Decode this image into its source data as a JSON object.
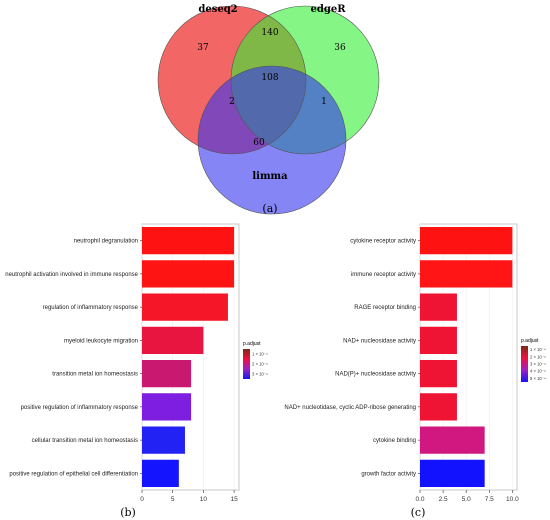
{
  "venn": {
    "panel_label": "(a)",
    "sets": [
      {
        "name": "deseq2",
        "color": "#f04040"
      },
      {
        "name": "edgeR",
        "color": "#33ee33"
      },
      {
        "name": "limma",
        "color": "#3333ee"
      }
    ],
    "regions": {
      "deseq2_only": "37",
      "edgeR_only": "36",
      "limma_only": "60",
      "deseq2_edgeR": "140",
      "deseq2_limma": "2",
      "edgeR_limma": "1",
      "all": "108"
    }
  },
  "legend_b": {
    "title": "p.adjust",
    "colors": [
      "#7a2a18",
      "#ee1040",
      "#a020c0",
      "#1515f0"
    ],
    "labels": [
      "1 × 10⁻⁴",
      "2 × 10⁻⁴",
      "3 × 10⁻⁴"
    ]
  },
  "legend_c": {
    "title": "p.adjust",
    "colors": [
      "#7a2a18",
      "#ee1040",
      "#a020c0",
      "#1515f0"
    ],
    "labels": [
      "1 × 10⁻⁴",
      "2 × 10⁻⁴",
      "3 × 10⁻⁴",
      "4 × 10⁻⁴",
      "5 × 10⁻⁴"
    ]
  },
  "chart_data": [
    {
      "type": "bar",
      "orientation": "horizontal",
      "panel_label": "(b)",
      "categories": [
        "neutrophil degranulation",
        "neutrophil activation involved in immune response",
        "regulation of inflammatory response",
        "myeloid leukocyte migration",
        "transition metal ion homeostasis",
        "positive regulation of inflammatory response",
        "cellular transition metal ion homeostasis",
        "positive regulation of epithelial cell differentiation"
      ],
      "values": [
        15,
        15,
        14,
        10,
        8,
        8,
        7,
        6
      ],
      "colors": [
        "#ff1212",
        "#ff1414",
        "#f51628",
        "#e81540",
        "#c81870",
        "#7e1ee0",
        "#2222f4",
        "#1414ff"
      ],
      "xlim": [
        0,
        15.8
      ],
      "xticks": [
        0,
        5,
        10,
        15
      ],
      "xtick_labels": [
        "0",
        "5",
        "10",
        "15"
      ],
      "grid": true
    },
    {
      "type": "bar",
      "orientation": "horizontal",
      "panel_label": "(c)",
      "categories": [
        "cytokine receptor activity",
        "immune receptor activity",
        "RAGE receptor binding",
        "NAD+ nucleosidase activity",
        "NAD(P)+ nucleosidase activity",
        "NAD+ nucleotidase, cyclic ADP-ribose generating",
        "cytokine binding",
        "growth factor activity"
      ],
      "values": [
        10,
        10,
        4,
        4,
        4,
        4,
        7,
        7
      ],
      "colors": [
        "#ff1212",
        "#ff1515",
        "#ef1434",
        "#ef1434",
        "#ef1434",
        "#ef1434",
        "#d01880",
        "#1212ff"
      ],
      "xlim": [
        0,
        10.5
      ],
      "xticks": [
        0,
        2.5,
        5,
        7.5,
        10
      ],
      "xtick_labels": [
        "0.0",
        "2.5",
        "5.0",
        "7.5",
        "10.0"
      ],
      "grid": true
    }
  ]
}
